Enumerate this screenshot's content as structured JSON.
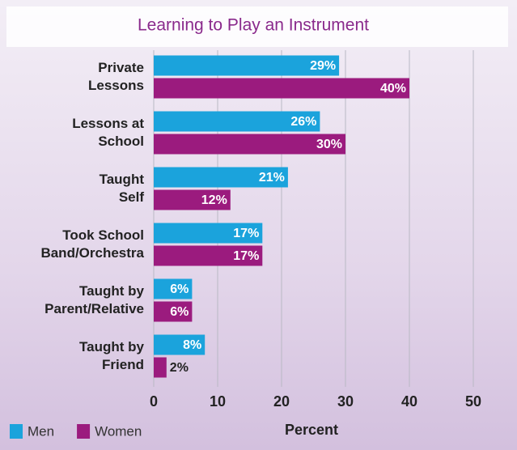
{
  "chart_data": {
    "type": "bar",
    "orientation": "horizontal",
    "title": "Learning to Play an Instrument",
    "x_label": "Percent",
    "categories": [
      "Private\nLessons",
      "Lessons at\nSchool",
      "Taught\nSelf",
      "Took School\nBand/Orchestra",
      "Taught by\nParent/Relative",
      "Taught by\nFriend"
    ],
    "series": [
      {
        "name": "Men",
        "color": "#1ba3dc",
        "values": [
          29,
          26,
          21,
          17,
          6,
          8
        ],
        "value_labels": [
          "29%",
          "26%",
          "21%",
          "17%",
          "6%",
          "8%"
        ]
      },
      {
        "name": "Women",
        "color": "#9b1b7e",
        "values": [
          40,
          30,
          12,
          17,
          6,
          2
        ],
        "value_labels": [
          "40%",
          "30%",
          "12%",
          "17%",
          "6%",
          "2%"
        ]
      }
    ],
    "xlim": [
      0,
      50
    ],
    "xticks": [
      0,
      10,
      20,
      30,
      40,
      50
    ],
    "grid": true,
    "legend": "bottom-left"
  }
}
